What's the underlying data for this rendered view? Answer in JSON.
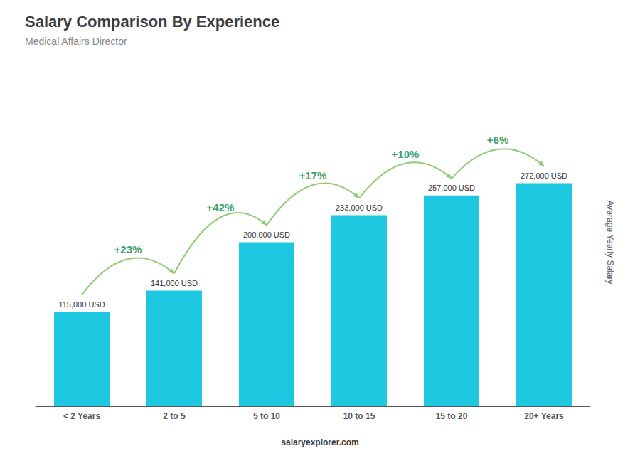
{
  "chart_data": {
    "type": "bar",
    "title": "Salary Comparison By Experience",
    "subtitle": "Medical Affairs Director",
    "ylabel": "Average Yearly Salary",
    "categories": [
      "< 2 Years",
      "2 to 5",
      "5 to 10",
      "10 to 15",
      "15 to 20",
      "20+ Years"
    ],
    "values": [
      115000,
      141000,
      200000,
      233000,
      257000,
      272000
    ],
    "value_labels": [
      "115,000 USD",
      "141,000 USD",
      "200,000 USD",
      "233,000 USD",
      "257,000 USD",
      "272,000 USD"
    ],
    "data_labels": true,
    "annotations": [
      "+23%",
      "+42%",
      "+17%",
      "+10%",
      "+6%"
    ],
    "watermark": "salaryexplorer.com",
    "color": "#1EC8E0",
    "ylim": [
      0,
      400000
    ],
    "yticks": [
      0,
      100000,
      200000,
      300000,
      400000
    ],
    "grid": false,
    "tick_labels": "x"
  }
}
